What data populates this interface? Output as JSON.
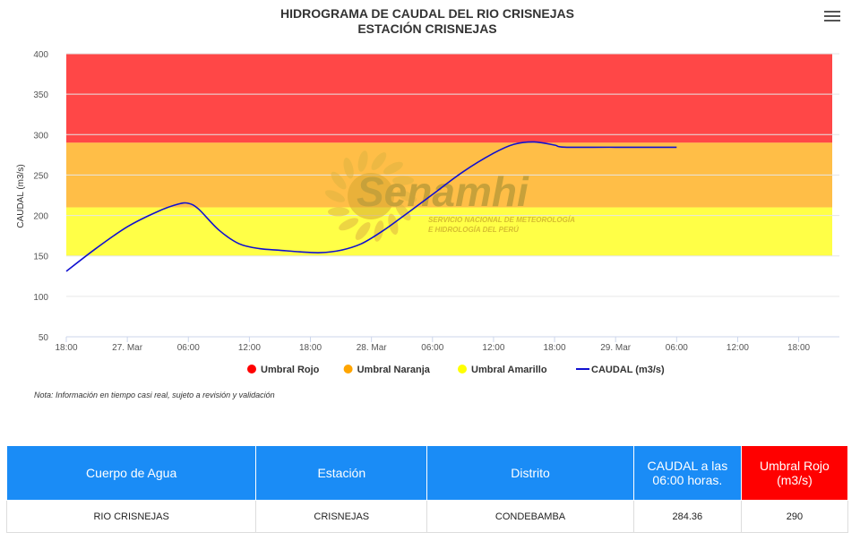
{
  "chart_data": {
    "type": "line",
    "title": "HIDROGRAMA DE CAUDAL DEL RIO CRISNEJAS",
    "subtitle": "ESTACIÓN CRISNEJAS",
    "ylabel": "CAUDAL (m3/s)",
    "ylim": [
      50,
      400
    ],
    "yticks": [
      50,
      100,
      150,
      200,
      250,
      300,
      350,
      400
    ],
    "xlim": [
      "2024-03-26 18:00",
      "2024-03-29 22:00"
    ],
    "xticks": [
      {
        "t": "2024-03-26 18:00",
        "label": "18:00"
      },
      {
        "t": "2024-03-27 00:00",
        "label": "27. Mar"
      },
      {
        "t": "2024-03-27 06:00",
        "label": "06:00"
      },
      {
        "t": "2024-03-27 12:00",
        "label": "12:00"
      },
      {
        "t": "2024-03-27 18:00",
        "label": "18:00"
      },
      {
        "t": "2024-03-28 00:00",
        "label": "28. Mar"
      },
      {
        "t": "2024-03-28 06:00",
        "label": "06:00"
      },
      {
        "t": "2024-03-28 12:00",
        "label": "12:00"
      },
      {
        "t": "2024-03-28 18:00",
        "label": "18:00"
      },
      {
        "t": "2024-03-29 00:00",
        "label": "29. Mar"
      },
      {
        "t": "2024-03-29 06:00",
        "label": "06:00"
      },
      {
        "t": "2024-03-29 12:00",
        "label": "12:00"
      },
      {
        "t": "2024-03-29 18:00",
        "label": "18:00"
      }
    ],
    "bands": [
      {
        "name": "Umbral Rojo",
        "from": 290,
        "to": 400,
        "color": "#ff0000"
      },
      {
        "name": "Umbral Naranja",
        "from": 210,
        "to": 290,
        "color": "#ffa500"
      },
      {
        "name": "Umbral Amarillo",
        "from": 150,
        "to": 210,
        "color": "#ffff00"
      }
    ],
    "series": [
      {
        "name": "CAUDAL (m3/s)",
        "color": "#1010d0",
        "points": [
          {
            "t": "2024-03-26 18:00",
            "y": 131
          },
          {
            "t": "2024-03-26 21:00",
            "y": 160
          },
          {
            "t": "2024-03-27 00:00",
            "y": 186
          },
          {
            "t": "2024-03-27 03:00",
            "y": 205
          },
          {
            "t": "2024-03-27 05:00",
            "y": 214
          },
          {
            "t": "2024-03-27 06:00",
            "y": 215
          },
          {
            "t": "2024-03-27 07:00",
            "y": 208
          },
          {
            "t": "2024-03-27 09:00",
            "y": 182
          },
          {
            "t": "2024-03-27 11:00",
            "y": 165
          },
          {
            "t": "2024-03-27 13:00",
            "y": 159
          },
          {
            "t": "2024-03-27 15:00",
            "y": 157
          },
          {
            "t": "2024-03-27 17:00",
            "y": 155
          },
          {
            "t": "2024-03-27 19:00",
            "y": 154
          },
          {
            "t": "2024-03-27 21:00",
            "y": 157
          },
          {
            "t": "2024-03-27 23:00",
            "y": 165
          },
          {
            "t": "2024-03-28 01:00",
            "y": 180
          },
          {
            "t": "2024-03-28 03:00",
            "y": 198
          },
          {
            "t": "2024-03-28 06:00",
            "y": 226
          },
          {
            "t": "2024-03-28 09:00",
            "y": 254
          },
          {
            "t": "2024-03-28 12:00",
            "y": 277
          },
          {
            "t": "2024-03-28 14:00",
            "y": 288
          },
          {
            "t": "2024-03-28 16:00",
            "y": 291
          },
          {
            "t": "2024-03-28 18:00",
            "y": 287
          },
          {
            "t": "2024-03-28 19:00",
            "y": 284.5
          },
          {
            "t": "2024-03-29 00:00",
            "y": 284.4
          },
          {
            "t": "2024-03-29 06:00",
            "y": 284.36
          }
        ]
      }
    ],
    "legend": [
      "Umbral Rojo",
      "Umbral Naranja",
      "Umbral Amarillo",
      "CAUDAL (m3/s)"
    ],
    "legend_position": "bottom-center"
  },
  "watermark": {
    "logo_text": "Senamhi",
    "line1": "SERVICIO NACIONAL DE METEOROLOGÍA",
    "line2": "E HIDROLOGÍA DEL PERÚ"
  },
  "note": "Nota: Información en tiempo casi real, sujeto a revisión y validación",
  "menu_icon": "hamburger-menu-icon",
  "table": {
    "headers": [
      "Cuerpo de Agua",
      "Estación",
      "Distrito",
      "CAUDAL a las 06:00 horas.",
      "Umbral Rojo (m3/s)"
    ],
    "row": [
      "RIO CRISNEJAS",
      "CRISNEJAS",
      "CONDEBAMBA",
      "284.36",
      "290"
    ]
  },
  "colors": {
    "table_header": "#1a8cf6",
    "umbral_rojo_header": "#ff0000"
  }
}
